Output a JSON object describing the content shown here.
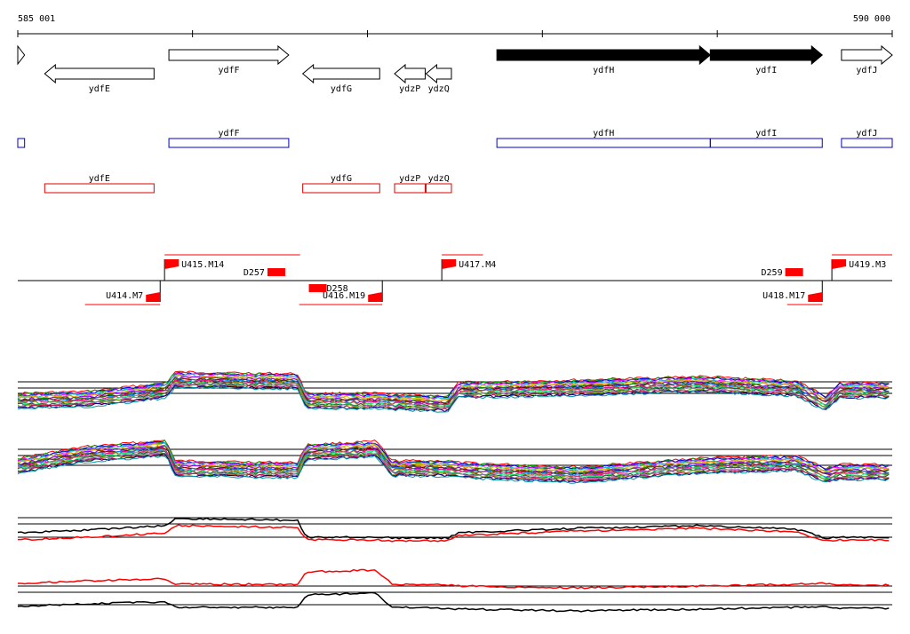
{
  "ruler": {
    "start_label": "585 001",
    "end_label": "590 000",
    "start_bp": 585001,
    "end_bp": 590000
  },
  "genes": [
    {
      "name": "",
      "strand": "+",
      "start_bp": 585001,
      "end_bp": 585040,
      "filled": false
    },
    {
      "name": "ydfE",
      "strand": "-",
      "start_bp": 585155,
      "end_bp": 585780,
      "filled": false
    },
    {
      "name": "ydfF",
      "strand": "+",
      "start_bp": 585865,
      "end_bp": 586550,
      "filled": false
    },
    {
      "name": "ydfG",
      "strand": "-",
      "start_bp": 586630,
      "end_bp": 587070,
      "filled": false
    },
    {
      "name": "ydzP",
      "strand": "-",
      "start_bp": 587155,
      "end_bp": 587330,
      "filled": false
    },
    {
      "name": "ydzQ",
      "strand": "-",
      "start_bp": 587335,
      "end_bp": 587480,
      "filled": false
    },
    {
      "name": "ydfH",
      "strand": "+",
      "start_bp": 587740,
      "end_bp": 588960,
      "filled": true
    },
    {
      "name": "ydfI",
      "strand": "+",
      "start_bp": 588960,
      "end_bp": 589600,
      "filled": true
    },
    {
      "name": "ydfJ",
      "strand": "+",
      "start_bp": 589710,
      "end_bp": 590000,
      "filled": false
    }
  ],
  "forward_boxes": [
    {
      "name": "",
      "start_bp": 585001,
      "end_bp": 585040
    },
    {
      "name": "ydfF",
      "start_bp": 585865,
      "end_bp": 586550
    },
    {
      "name": "ydfH",
      "start_bp": 587740,
      "end_bp": 588960
    },
    {
      "name": "ydfI",
      "start_bp": 588960,
      "end_bp": 589600
    },
    {
      "name": "ydfJ",
      "start_bp": 589710,
      "end_bp": 590000
    }
  ],
  "reverse_boxes": [
    {
      "name": "ydfE",
      "start_bp": 585155,
      "end_bp": 585780
    },
    {
      "name": "ydfG",
      "start_bp": 586630,
      "end_bp": 587070
    },
    {
      "name": "ydzP",
      "start_bp": 587155,
      "end_bp": 587330
    },
    {
      "name": "ydzQ",
      "start_bp": 587335,
      "end_bp": 587480
    }
  ],
  "transcription_units": [
    {
      "name": "U414.M7",
      "strand": "-",
      "start_bp": 585385,
      "end_bp": 585815
    },
    {
      "name": "U415.M14",
      "strand": "+",
      "start_bp": 585840,
      "end_bp": 586615
    },
    {
      "name": "U416.M19",
      "strand": "-",
      "start_bp": 586610,
      "end_bp": 587085
    },
    {
      "name": "U417.M4",
      "strand": "+",
      "start_bp": 587425,
      "end_bp": 587660
    },
    {
      "name": "U418.M17",
      "strand": "-",
      "start_bp": 589400,
      "end_bp": 589600
    },
    {
      "name": "U419.M3",
      "strand": "+",
      "start_bp": 589655,
      "end_bp": 590000
    }
  ],
  "downshifts": [
    {
      "name": "D257",
      "strand": "+",
      "bp": 586530
    },
    {
      "name": "D258",
      "strand": "-",
      "bp": 586665
    },
    {
      "name": "D259",
      "strand": "+",
      "bp": 589490
    }
  ],
  "profile_colors": [
    "#ff0000",
    "#00aa00",
    "#0000ff",
    "#ff00ff",
    "#00cccc",
    "#cccc00",
    "#ff8800",
    "#8800ff",
    "#008800",
    "#880000",
    "#0088ff",
    "#ff0088",
    "#888800",
    "#00ff88",
    "#444444",
    "#aa66cc",
    "#66aa00",
    "#cc0044",
    "#000088",
    "#009999"
  ],
  "profile_black_color": "#000000",
  "profile_red_color": "#ff0000",
  "gene_outline_color": "#000000",
  "forward_box_color": "#0000cc",
  "reverse_box_color": "#dd0000",
  "tu_color": "#ff0000"
}
